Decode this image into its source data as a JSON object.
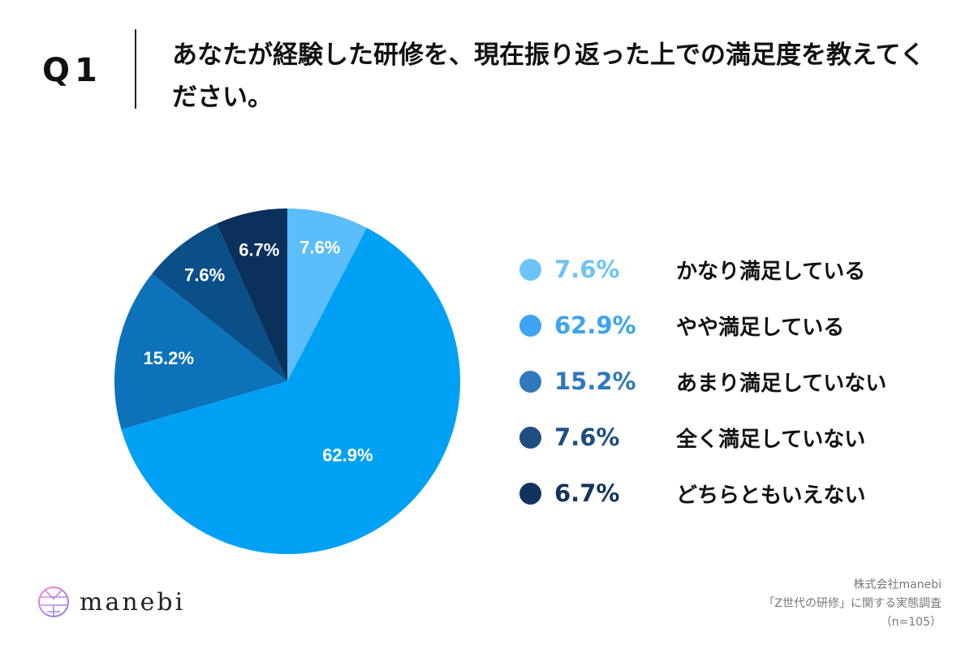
{
  "header": {
    "question": "Q1",
    "title": "あなたが経験した研修を、現在振り返った上での満足度を教えてください。"
  },
  "chart_data": {
    "type": "pie",
    "categories": [
      "かなり満足している",
      "やや満足している",
      "あまり満足していない",
      "全く満足していない",
      "どちらともいえない"
    ],
    "values": [
      7.6,
      62.9,
      15.2,
      7.6,
      6.7
    ],
    "labels": [
      "7.6%",
      "62.9%",
      "15.2%",
      "7.6%",
      "6.7%"
    ],
    "slice_colors": [
      "#5bbdf9",
      "#00a1f4",
      "#0c72ba",
      "#0a4f87",
      "#0a305c"
    ],
    "legend_colors": [
      "#6cc3f8",
      "#3ea3f2",
      "#2f78bd",
      "#1f4d80",
      "#13335f"
    ],
    "legend_placement": "right",
    "start": "top, clockwise"
  },
  "footer": {
    "logo": "manebi",
    "source": [
      "株式会社manebi",
      "「Z世代の研修」に関する実態調査",
      "（n=105）"
    ]
  }
}
